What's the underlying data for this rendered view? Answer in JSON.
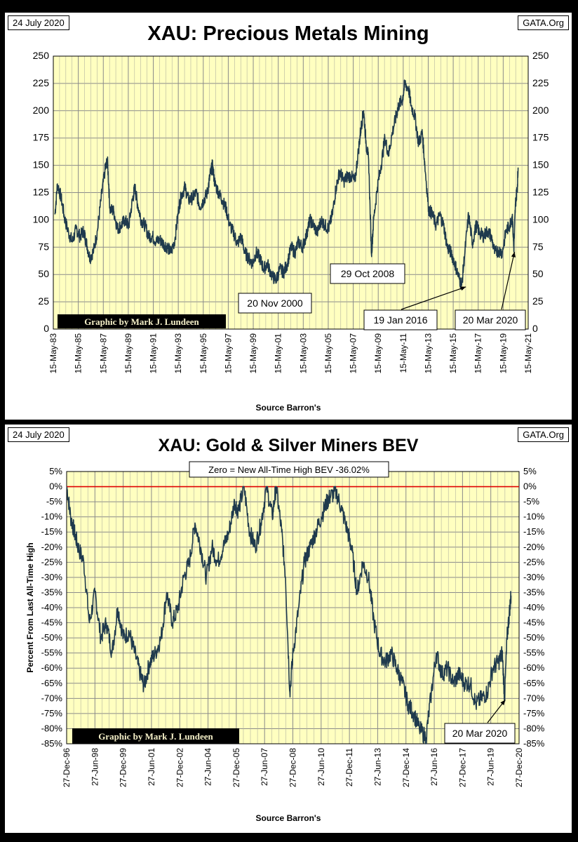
{
  "chart_data": [
    {
      "type": "line",
      "title": "XAU: Precious Metals Mining",
      "date_label": "24 July 2020",
      "source_tag": "GATA.Org",
      "credit": "Graphic by Mark J. Lundeen",
      "xlabel": "Source Barron's",
      "ylabel": "",
      "ylim": [
        0,
        250
      ],
      "yticks": [
        0,
        25,
        50,
        75,
        100,
        125,
        150,
        175,
        200,
        225,
        250
      ],
      "ytick_labels": [
        "0",
        "25",
        "50",
        "75",
        "100",
        "125",
        "150",
        "175",
        "200",
        "225",
        "250"
      ],
      "xlim": [
        1983.37,
        2021.37
      ],
      "xtick_labels": [
        "15-May-83",
        "15-May-85",
        "15-May-87",
        "15-May-89",
        "15-May-91",
        "15-May-93",
        "15-May-95",
        "15-May-97",
        "15-May-99",
        "15-May-01",
        "15-May-03",
        "15-May-05",
        "15-May-07",
        "15-May-09",
        "15-May-11",
        "15-May-13",
        "15-May-15",
        "15-May-17",
        "15-May-19",
        "15-May-21"
      ],
      "grid": true,
      "series": [
        {
          "name": "",
          "color": "#1f3a4d",
          "points": [
            [
              1983.5,
              105
            ],
            [
              1983.7,
              133
            ],
            [
              1984.0,
              120
            ],
            [
              1984.3,
              100
            ],
            [
              1984.6,
              88
            ],
            [
              1984.9,
              80
            ],
            [
              1985.2,
              92
            ],
            [
              1985.5,
              85
            ],
            [
              1985.8,
              90
            ],
            [
              1986.0,
              80
            ],
            [
              1986.3,
              65
            ],
            [
              1986.6,
              72
            ],
            [
              1986.9,
              90
            ],
            [
              1987.2,
              120
            ],
            [
              1987.5,
              145
            ],
            [
              1987.7,
              155
            ],
            [
              1987.9,
              110
            ],
            [
              1988.2,
              108
            ],
            [
              1988.5,
              92
            ],
            [
              1988.8,
              95
            ],
            [
              1989.1,
              100
            ],
            [
              1989.4,
              94
            ],
            [
              1989.7,
              118
            ],
            [
              1989.9,
              130
            ],
            [
              1990.1,
              115
            ],
            [
              1990.4,
              100
            ],
            [
              1990.7,
              95
            ],
            [
              1991.0,
              85
            ],
            [
              1991.3,
              85
            ],
            [
              1991.6,
              80
            ],
            [
              1991.9,
              82
            ],
            [
              1992.2,
              78
            ],
            [
              1992.5,
              75
            ],
            [
              1992.8,
              70
            ],
            [
              1993.1,
              82
            ],
            [
              1993.4,
              110
            ],
            [
              1993.6,
              122
            ],
            [
              1993.9,
              130
            ],
            [
              1994.2,
              118
            ],
            [
              1994.5,
              120
            ],
            [
              1994.8,
              125
            ],
            [
              1995.1,
              112
            ],
            [
              1995.4,
              118
            ],
            [
              1995.7,
              125
            ],
            [
              1995.9,
              140
            ],
            [
              1996.1,
              150
            ],
            [
              1996.3,
              133
            ],
            [
              1996.6,
              125
            ],
            [
              1996.9,
              118
            ],
            [
              1997.2,
              110
            ],
            [
              1997.5,
              95
            ],
            [
              1997.8,
              88
            ],
            [
              1998.1,
              78
            ],
            [
              1998.4,
              85
            ],
            [
              1998.7,
              70
            ],
            [
              1999.0,
              65
            ],
            [
              1999.3,
              60
            ],
            [
              1999.6,
              70
            ],
            [
              1999.9,
              65
            ],
            [
              2000.2,
              55
            ],
            [
              2000.5,
              60
            ],
            [
              2000.9,
              48
            ],
            [
              2001.2,
              45
            ],
            [
              2001.5,
              55
            ],
            [
              2001.8,
              52
            ],
            [
              2002.1,
              60
            ],
            [
              2002.4,
              75
            ],
            [
              2002.7,
              70
            ],
            [
              2003.0,
              80
            ],
            [
              2003.3,
              75
            ],
            [
              2003.6,
              85
            ],
            [
              2003.9,
              100
            ],
            [
              2004.2,
              95
            ],
            [
              2004.5,
              88
            ],
            [
              2004.8,
              100
            ],
            [
              2005.1,
              95
            ],
            [
              2005.4,
              92
            ],
            [
              2005.7,
              105
            ],
            [
              2006.0,
              130
            ],
            [
              2006.3,
              145
            ],
            [
              2006.6,
              135
            ],
            [
              2006.9,
              140
            ],
            [
              2007.2,
              140
            ],
            [
              2007.5,
              135
            ],
            [
              2007.8,
              165
            ],
            [
              2008.0,
              185
            ],
            [
              2008.2,
              200
            ],
            [
              2008.4,
              170
            ],
            [
              2008.6,
              155
            ],
            [
              2008.83,
              68
            ],
            [
              2009.0,
              100
            ],
            [
              2009.3,
              130
            ],
            [
              2009.6,
              150
            ],
            [
              2009.9,
              175
            ],
            [
              2010.2,
              160
            ],
            [
              2010.5,
              180
            ],
            [
              2010.8,
              195
            ],
            [
              2011.0,
              205
            ],
            [
              2011.3,
              210
            ],
            [
              2011.5,
              225
            ],
            [
              2011.8,
              220
            ],
            [
              2012.0,
              205
            ],
            [
              2012.3,
              195
            ],
            [
              2012.6,
              170
            ],
            [
              2012.9,
              180
            ],
            [
              2013.1,
              150
            ],
            [
              2013.4,
              110
            ],
            [
              2013.7,
              105
            ],
            [
              2014.0,
              95
            ],
            [
              2014.3,
              105
            ],
            [
              2014.6,
              95
            ],
            [
              2014.9,
              75
            ],
            [
              2015.2,
              70
            ],
            [
              2015.5,
              60
            ],
            [
              2015.8,
              48
            ],
            [
              2016.05,
              40
            ],
            [
              2016.3,
              70
            ],
            [
              2016.6,
              105
            ],
            [
              2016.9,
              78
            ],
            [
              2017.2,
              95
            ],
            [
              2017.5,
              88
            ],
            [
              2017.8,
              85
            ],
            [
              2018.1,
              90
            ],
            [
              2018.4,
              85
            ],
            [
              2018.7,
              70
            ],
            [
              2019.0,
              72
            ],
            [
              2019.3,
              70
            ],
            [
              2019.6,
              90
            ],
            [
              2019.9,
              95
            ],
            [
              2020.1,
              105
            ],
            [
              2020.22,
              72
            ],
            [
              2020.35,
              115
            ],
            [
              2020.5,
              130
            ],
            [
              2020.56,
              148
            ]
          ]
        }
      ],
      "annotations": [
        {
          "text": "20 Nov 2000",
          "x": 2000.88,
          "y": 45
        },
        {
          "text": "29 Oct 2008",
          "x": 2008.83,
          "y": 68
        },
        {
          "text": "19 Jan 2016",
          "x": 2016.05,
          "y": 40
        },
        {
          "text": "20 Mar 2020",
          "x": 2020.22,
          "y": 72
        }
      ]
    },
    {
      "type": "line",
      "title": "XAU: Gold & Silver Miners BEV",
      "date_label": "24 July 2020",
      "source_tag": "GATA.Org",
      "credit": "Graphic by Mark J. Lundeen",
      "subtitle": "Zero = New All-Time High BEV -36.02%",
      "xlabel": "Source Barron's",
      "ylabel": "Percent From Last All-Time High",
      "ylim": [
        -85,
        5
      ],
      "yticks": [
        5,
        0,
        -5,
        -10,
        -15,
        -20,
        -25,
        -30,
        -35,
        -40,
        -45,
        -50,
        -55,
        -60,
        -65,
        -70,
        -75,
        -80,
        -85
      ],
      "ytick_labels": [
        "5%",
        "0%",
        "-5%",
        "-10%",
        "-15%",
        "-20%",
        "-25%",
        "-30%",
        "-35%",
        "-40%",
        "-45%",
        "-50%",
        "-55%",
        "-60%",
        "-65%",
        "-70%",
        "-75%",
        "-80%",
        "-85%"
      ],
      "xlim": [
        1996.99,
        2020.99
      ],
      "xtick_labels": [
        "27-Dec-96",
        "27-Jun-98",
        "27-Dec-99",
        "27-Jun-01",
        "27-Dec-02",
        "27-Jun-04",
        "27-Dec-05",
        "27-Jun-07",
        "27-Dec-08",
        "27-Jun-10",
        "27-Dec-11",
        "27-Jun-13",
        "27-Dec-14",
        "27-Jun-16",
        "27-Dec-17",
        "27-Jun-19",
        "27-Dec-20"
      ],
      "grid": true,
      "series": [
        {
          "name": "",
          "color": "#1f3a4d",
          "points": [
            [
              1997.0,
              0
            ],
            [
              1997.2,
              -10
            ],
            [
              1997.4,
              -15
            ],
            [
              1997.6,
              -20
            ],
            [
              1997.9,
              -25
            ],
            [
              1998.2,
              -45
            ],
            [
              1998.5,
              -35
            ],
            [
              1998.8,
              -50
            ],
            [
              1999.1,
              -45
            ],
            [
              1999.4,
              -55
            ],
            [
              1999.7,
              -40
            ],
            [
              2000.0,
              -50
            ],
            [
              2000.3,
              -48
            ],
            [
              2000.6,
              -55
            ],
            [
              2000.9,
              -62
            ],
            [
              2001.1,
              -66
            ],
            [
              2001.4,
              -58
            ],
            [
              2001.7,
              -55
            ],
            [
              2002.0,
              -50
            ],
            [
              2002.3,
              -35
            ],
            [
              2002.6,
              -45
            ],
            [
              2002.9,
              -40
            ],
            [
              2003.2,
              -30
            ],
            [
              2003.5,
              -25
            ],
            [
              2003.8,
              -12
            ],
            [
              2004.1,
              -20
            ],
            [
              2004.4,
              -30
            ],
            [
              2004.7,
              -20
            ],
            [
              2005.0,
              -25
            ],
            [
              2005.3,
              -20
            ],
            [
              2005.6,
              -15
            ],
            [
              2005.9,
              -5
            ],
            [
              2006.1,
              -8
            ],
            [
              2006.4,
              0
            ],
            [
              2006.7,
              -15
            ],
            [
              2007.0,
              -20
            ],
            [
              2007.3,
              -12
            ],
            [
              2007.6,
              0
            ],
            [
              2007.9,
              -10
            ],
            [
              2008.1,
              0
            ],
            [
              2008.4,
              -15
            ],
            [
              2008.6,
              -30
            ],
            [
              2008.83,
              -68
            ],
            [
              2009.0,
              -55
            ],
            [
              2009.3,
              -40
            ],
            [
              2009.6,
              -25
            ],
            [
              2009.9,
              -20
            ],
            [
              2010.2,
              -15
            ],
            [
              2010.5,
              -10
            ],
            [
              2010.8,
              -5
            ],
            [
              2011.0,
              -3
            ],
            [
              2011.3,
              -2
            ],
            [
              2011.6,
              -8
            ],
            [
              2011.9,
              -15
            ],
            [
              2012.1,
              -20
            ],
            [
              2012.4,
              -35
            ],
            [
              2012.7,
              -25
            ],
            [
              2013.0,
              -30
            ],
            [
              2013.3,
              -45
            ],
            [
              2013.6,
              -55
            ],
            [
              2013.9,
              -58
            ],
            [
              2014.2,
              -55
            ],
            [
              2014.5,
              -60
            ],
            [
              2014.8,
              -65
            ],
            [
              2015.1,
              -72
            ],
            [
              2015.4,
              -75
            ],
            [
              2015.7,
              -80
            ],
            [
              2016.05,
              -83
            ],
            [
              2016.3,
              -70
            ],
            [
              2016.6,
              -55
            ],
            [
              2016.9,
              -62
            ],
            [
              2017.2,
              -60
            ],
            [
              2017.5,
              -65
            ],
            [
              2017.8,
              -62
            ],
            [
              2018.1,
              -65
            ],
            [
              2018.4,
              -65
            ],
            [
              2018.7,
              -72
            ],
            [
              2019.0,
              -70
            ],
            [
              2019.3,
              -68
            ],
            [
              2019.6,
              -60
            ],
            [
              2019.9,
              -58
            ],
            [
              2020.1,
              -55
            ],
            [
              2020.22,
              -70
            ],
            [
              2020.35,
              -50
            ],
            [
              2020.5,
              -40
            ],
            [
              2020.56,
              -36
            ]
          ]
        }
      ],
      "annotations": [
        {
          "text": "20 Mar 2020",
          "x": 2020.22,
          "y": -70
        }
      ]
    }
  ]
}
